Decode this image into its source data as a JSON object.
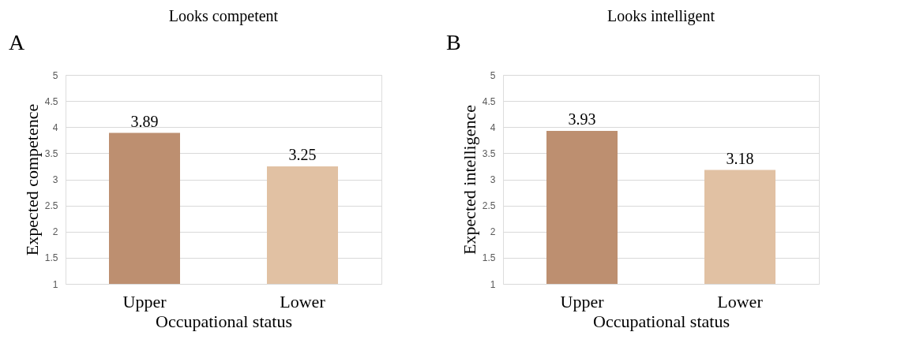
{
  "chart_data": [
    {
      "type": "bar",
      "title": "Looks competent",
      "xlabel": "Occupational status",
      "ylabel": "Expected competence",
      "annotations": [
        "A"
      ],
      "categories": [
        "Upper",
        "Lower"
      ],
      "values": [
        3.89,
        3.25
      ],
      "colors": [
        "#bd8f70",
        "#e1c1a3"
      ],
      "ylim": [
        1,
        5
      ],
      "yticks": [
        1,
        1.5,
        2,
        2.5,
        3,
        3.5,
        4,
        4.5,
        5
      ],
      "grid": "y",
      "data_labels": true
    },
    {
      "type": "bar",
      "title": "Looks intelligent",
      "xlabel": "Occupational status",
      "ylabel": "Expected intelligence",
      "annotations": [
        "B"
      ],
      "categories": [
        "Upper",
        "Lower"
      ],
      "values": [
        3.93,
        3.18
      ],
      "colors": [
        "#bd8f70",
        "#e1c1a3"
      ],
      "ylim": [
        1,
        5
      ],
      "yticks": [
        1,
        1.5,
        2,
        2.5,
        3,
        3.5,
        4,
        4.5,
        5
      ],
      "grid": "y",
      "data_labels": true
    }
  ]
}
